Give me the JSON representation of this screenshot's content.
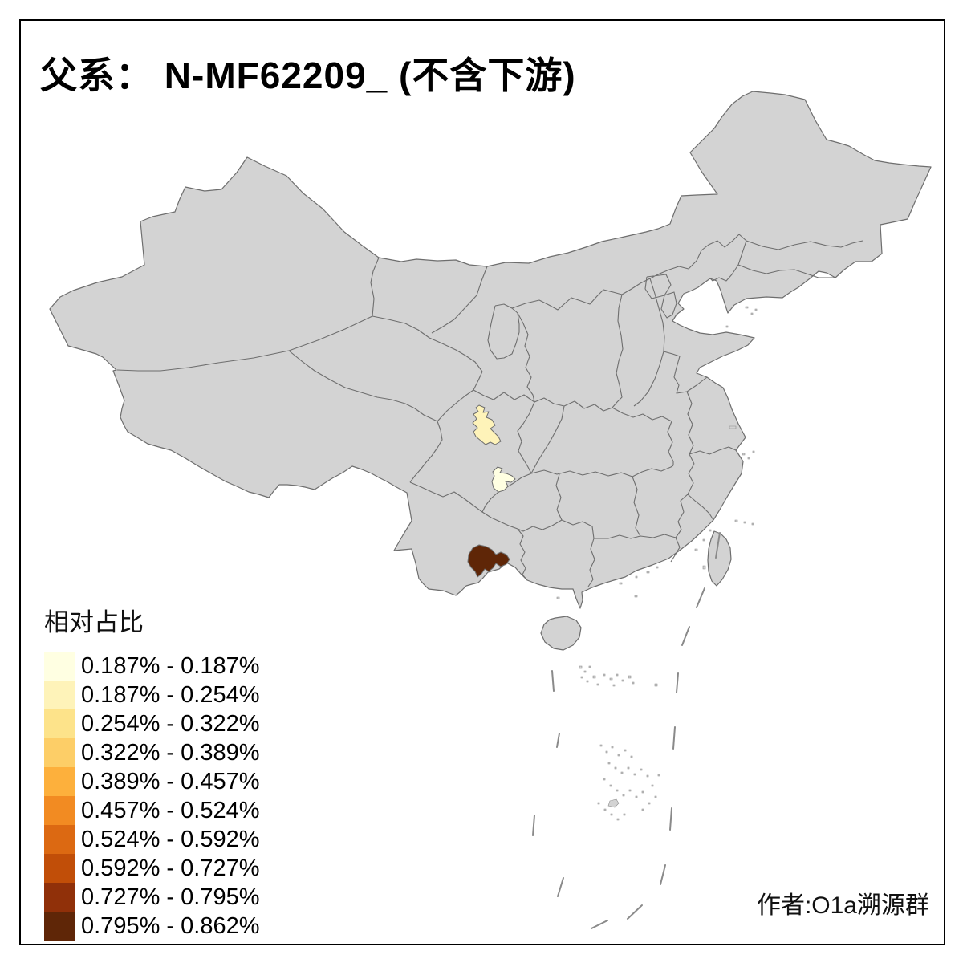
{
  "title": "父系： N-MF62209_ (不含下游)",
  "attribution": "作者:O1a溯源群",
  "legend": {
    "title": "相对占比",
    "entries": [
      {
        "label": "0.187% - 0.187%",
        "color": "#FFFFE2"
      },
      {
        "label": "0.187% - 0.254%",
        "color": "#FEF3B9"
      },
      {
        "label": "0.254% - 0.322%",
        "color": "#FDE38A"
      },
      {
        "label": "0.322% - 0.389%",
        "color": "#FDCE67"
      },
      {
        "label": "0.389% - 0.457%",
        "color": "#FDB03C"
      },
      {
        "label": "0.457% - 0.524%",
        "color": "#F28B22"
      },
      {
        "label": "0.524% - 0.592%",
        "color": "#DC6912"
      },
      {
        "label": "0.592% - 0.727%",
        "color": "#C14E08"
      },
      {
        "label": "0.727% - 0.795%",
        "color": "#903009"
      },
      {
        "label": "0.795% - 0.862%",
        "color": "#5F2607"
      }
    ]
  },
  "map": {
    "background_color": "#FFFFFF",
    "frame_color": "#000000",
    "land_color": "#D3D3D3",
    "border_color": "#6E6E6E",
    "highlighted_regions": [
      {
        "name": "highlighted-region-north",
        "value_range": "0.187% - 0.254%",
        "color": "#FEF3B9"
      },
      {
        "name": "highlighted-region-middle",
        "value_range": "0.187% - 0.187%",
        "color": "#FFFFE2"
      },
      {
        "name": "highlighted-region-south",
        "value_range": "0.795% - 0.862%",
        "color": "#5F2607"
      }
    ]
  }
}
